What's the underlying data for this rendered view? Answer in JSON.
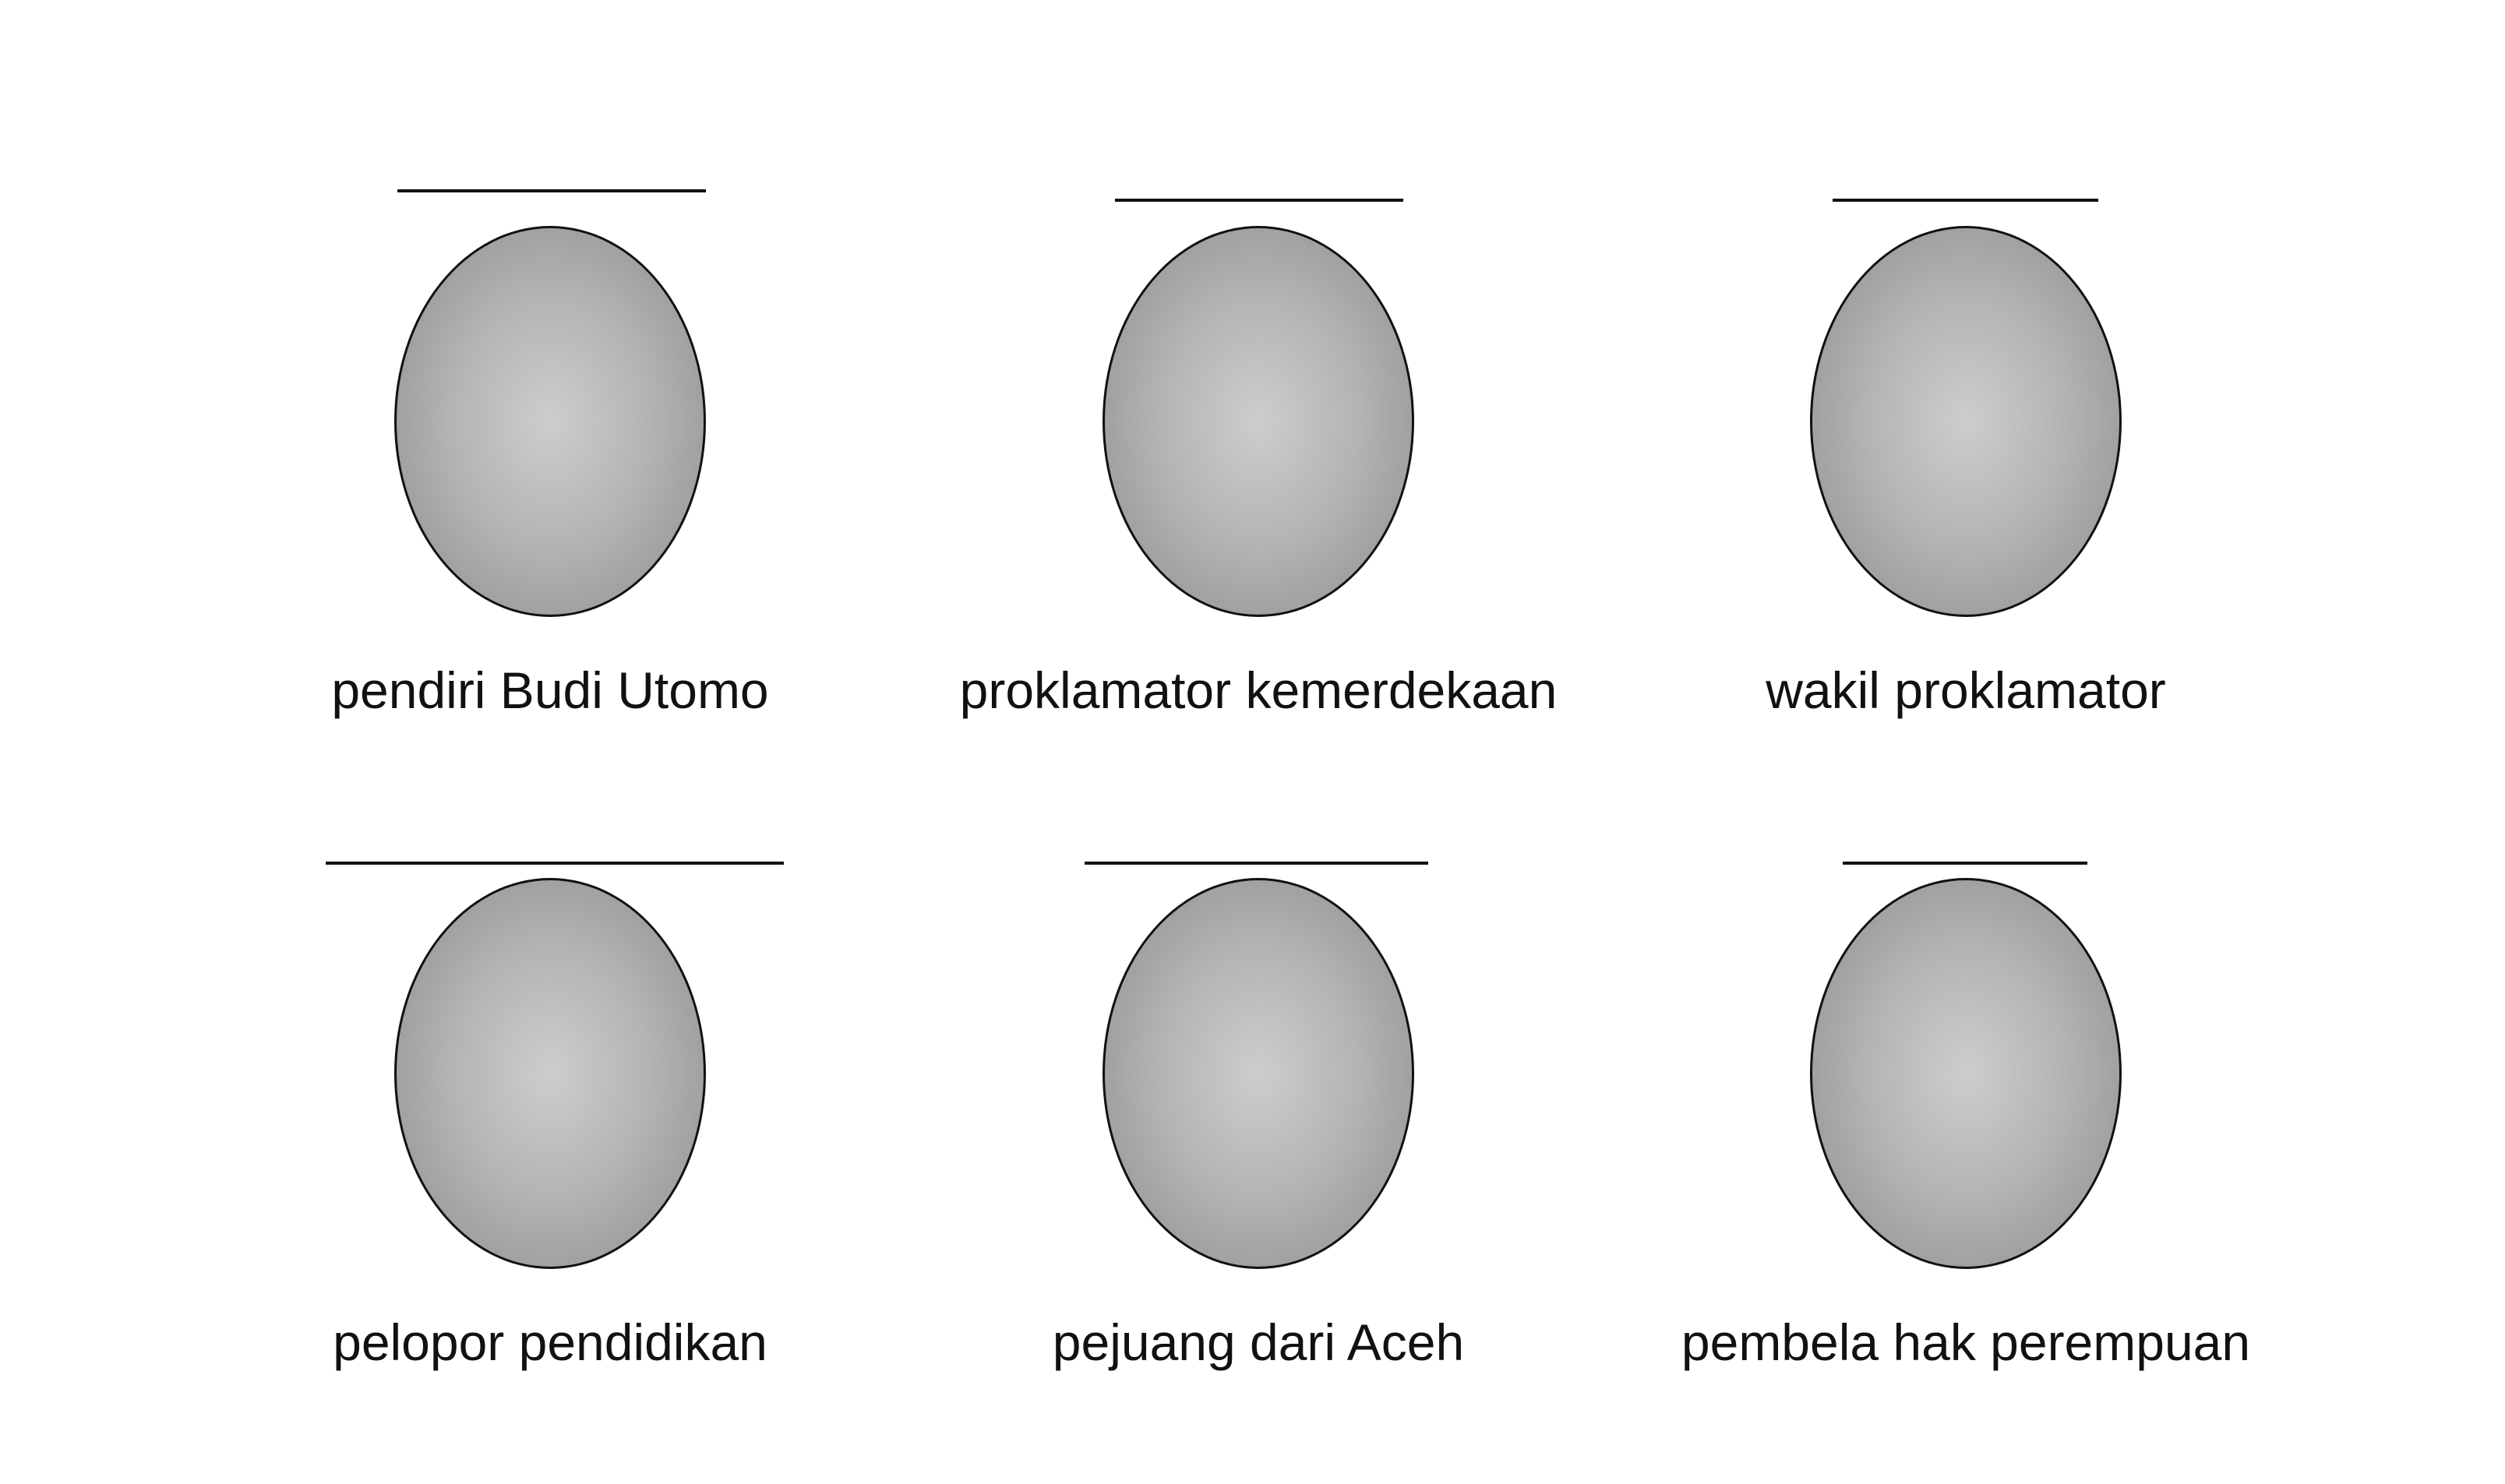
{
  "cards": [
    {
      "label": "pendiri Budi Utomo"
    },
    {
      "label": "proklamator kemerdekaan"
    },
    {
      "label": "wakil proklamator"
    },
    {
      "label": "pelopor pendidikan"
    },
    {
      "label": "pejuang dari Aceh"
    },
    {
      "label": "pembela hak perempuan"
    }
  ]
}
